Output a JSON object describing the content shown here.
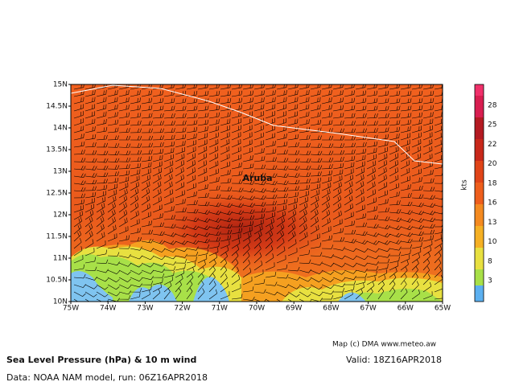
{
  "map": {
    "lat_labels": [
      "15N",
      "14.5N",
      "14N",
      "13.5N",
      "13N",
      "12.5N",
      "12N",
      "11.5N",
      "11N",
      "10.5N",
      "10N"
    ],
    "lon_labels": [
      "75W",
      "74W",
      "73W",
      "72W",
      "71W",
      "70W",
      "69W",
      "68W",
      "67W",
      "66W",
      "65W"
    ],
    "place_label": "Aruba"
  },
  "colorbar": {
    "unit": "kts",
    "labels": [
      28,
      25,
      22,
      20,
      18,
      16,
      13,
      10,
      8,
      3
    ]
  },
  "footer": {
    "credit": "Map (c) DMA www.meteo.aw",
    "title": "Sea Level Pressure (hPa) & 10 m wind",
    "valid": "Valid: 18Z16APR2018",
    "source": "Data: NOAA NAM model, run: 06Z16APR2018"
  }
}
